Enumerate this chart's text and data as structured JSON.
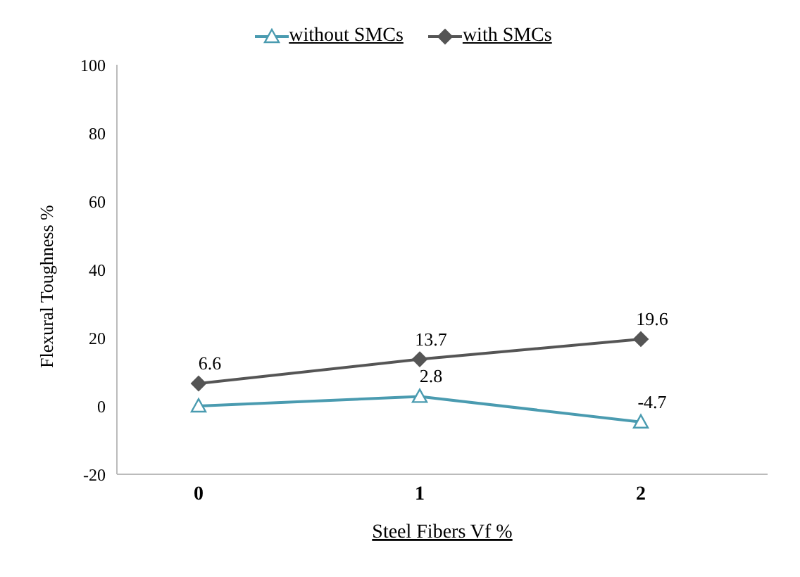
{
  "chart_data": {
    "type": "line",
    "xlabel": "Steel Fibers Vf %",
    "ylabel": "Flexural Toughness %",
    "categories": [
      "0",
      "1",
      "2"
    ],
    "series": [
      {
        "name": "without SMCs",
        "color": "#4a9bb0",
        "marker": "triangle",
        "values": [
          0,
          2.8,
          -4.7
        ],
        "value_labels": [
          null,
          "2.8",
          "-4.7"
        ]
      },
      {
        "name": "with SMCs",
        "color": "#555555",
        "marker": "diamond",
        "values": [
          6.6,
          13.7,
          19.6
        ],
        "value_labels": [
          "6.6",
          "13.7",
          "19.6"
        ]
      }
    ],
    "ylim": [
      -20,
      100
    ],
    "yticks": [
      -20,
      0,
      20,
      40,
      60,
      80,
      100
    ],
    "grid": false,
    "legend": "top",
    "line_style": "solid"
  }
}
